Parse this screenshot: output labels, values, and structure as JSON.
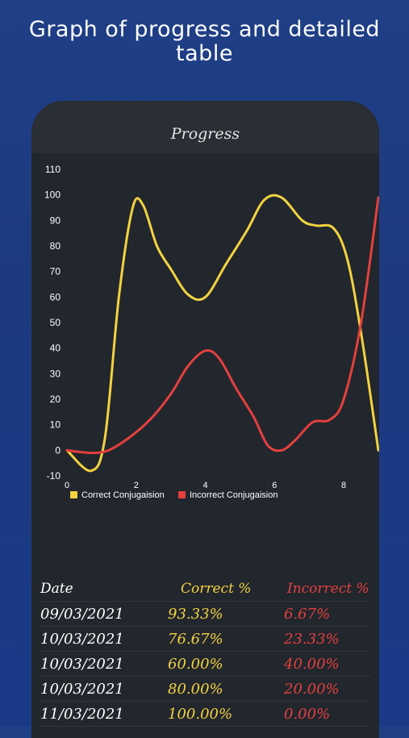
{
  "headline": {
    "line1": "Graph of progress and detailed",
    "line2": "table"
  },
  "screen": {
    "title": "Progress"
  },
  "colors": {
    "correct": "#f2d240",
    "incorrect": "#e3403e",
    "background": "#22262d"
  },
  "chart_data": {
    "type": "line",
    "xlim": [
      0,
      9
    ],
    "ylim": [
      -10,
      110
    ],
    "x_ticks": [
      "0",
      "2",
      "4",
      "6",
      "8"
    ],
    "y_ticks": [
      "110",
      "100",
      "90",
      "80",
      "70",
      "60",
      "50",
      "40",
      "30",
      "20",
      "10",
      "0",
      "-10"
    ],
    "legend_position": "bottom-left",
    "series": [
      {
        "name": "Correct Conjugaision",
        "color": "#f2d240",
        "points": [
          [
            0,
            0
          ],
          [
            0.7,
            -8
          ],
          [
            1.1,
            5
          ],
          [
            1.5,
            60
          ],
          [
            1.9,
            95
          ],
          [
            2.2,
            96
          ],
          [
            2.6,
            80
          ],
          [
            3.0,
            71
          ],
          [
            3.5,
            61
          ],
          [
            4.0,
            60
          ],
          [
            4.6,
            73
          ],
          [
            5.2,
            86
          ],
          [
            5.7,
            98
          ],
          [
            6.2,
            99
          ],
          [
            6.8,
            90
          ],
          [
            7.2,
            88
          ],
          [
            7.7,
            87
          ],
          [
            8.1,
            75
          ],
          [
            8.5,
            46
          ],
          [
            9.0,
            0
          ]
        ]
      },
      {
        "name": "Incorrect Conjugaision",
        "color": "#e3403e",
        "points": [
          [
            0,
            0
          ],
          [
            0.7,
            -1
          ],
          [
            1.2,
            0
          ],
          [
            1.8,
            5
          ],
          [
            2.4,
            12
          ],
          [
            3.0,
            22
          ],
          [
            3.5,
            33
          ],
          [
            4.0,
            39
          ],
          [
            4.4,
            36
          ],
          [
            4.9,
            24
          ],
          [
            5.4,
            13
          ],
          [
            5.8,
            2
          ],
          [
            6.2,
            0
          ],
          [
            6.6,
            4
          ],
          [
            7.1,
            11
          ],
          [
            7.6,
            12
          ],
          [
            8.0,
            20
          ],
          [
            8.5,
            50
          ],
          [
            9.0,
            99
          ]
        ]
      }
    ]
  },
  "table": {
    "headers": {
      "date": "Date",
      "correct": "Correct %",
      "incorrect": "Incorrect %"
    },
    "rows": [
      {
        "date": "09/03/2021",
        "correct": "93.33%",
        "incorrect": "6.67%"
      },
      {
        "date": "10/03/2021",
        "correct": "76.67%",
        "incorrect": "23.33%"
      },
      {
        "date": "10/03/2021",
        "correct": "60.00%",
        "incorrect": "40.00%"
      },
      {
        "date": "10/03/2021",
        "correct": "80.00%",
        "incorrect": "20.00%"
      },
      {
        "date": "11/03/2021",
        "correct": "100.00%",
        "incorrect": "0.00%"
      }
    ]
  }
}
